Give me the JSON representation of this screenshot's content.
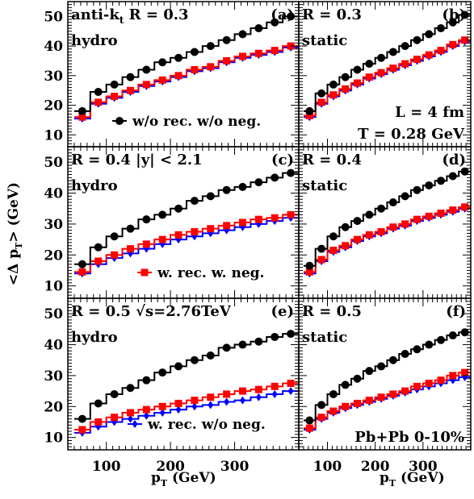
{
  "figure": {
    "ylabel_main": "<Δ p",
    "ylabel_sub": "T",
    "ylabel_tail": "> (GeV)",
    "xlabel_main": "p",
    "xlabel_sub": "T",
    "xlabel_tail": " (GeV)",
    "colors": {
      "black": "#000000",
      "red": "#ff0000",
      "blue": "#0000ff"
    },
    "x_ticks": [
      "100",
      "200",
      "300"
    ],
    "y_ticks": [
      "10",
      "20",
      "30",
      "40",
      "50"
    ]
  },
  "chart_data": [
    {
      "type": "line",
      "panel": "(a)",
      "label_left": "anti-k",
      "label_left_sub": "t",
      "label_left_tail": " R = 0.3",
      "label_sub": "hydro",
      "annotations": [],
      "legend": {
        "marker": "circle",
        "color": "#000000",
        "text": "w/o rec. w/o neg."
      },
      "xlim": [
        40,
        400
      ],
      "ylim": [
        6,
        55
      ],
      "x_edges": [
        50,
        75,
        100,
        125,
        150,
        175,
        200,
        225,
        250,
        275,
        300,
        325,
        350,
        375,
        400
      ],
      "x": [
        62.5,
        87.5,
        112.5,
        137.5,
        162.5,
        187.5,
        212.5,
        237.5,
        262.5,
        287.5,
        312.5,
        337.5,
        362.5,
        387.5
      ],
      "series": [
        {
          "name": "w/o rec. w/o neg.",
          "color": "#000000",
          "marker": "circle",
          "values": [
            18,
            24.5,
            27,
            29.5,
            32,
            34.5,
            36,
            38,
            40,
            42,
            44,
            46,
            48,
            50
          ]
        },
        {
          "color": "#ff0000",
          "marker": "square",
          "values": [
            16,
            21,
            23,
            25,
            27,
            28.5,
            30,
            32,
            33,
            35,
            36.5,
            37.5,
            38.5,
            40
          ]
        },
        {
          "color": "#0000ff",
          "marker": "diamond",
          "values": [
            15.5,
            20.5,
            22.5,
            24.5,
            26.5,
            28,
            29.5,
            31.5,
            32.5,
            34.5,
            36,
            37,
            38,
            39.5
          ]
        }
      ]
    },
    {
      "type": "line",
      "panel": "(b)",
      "label_left": "R = 0.3",
      "label_left_sub": "",
      "label_left_tail": "",
      "label_sub": "static",
      "annotations": [
        "L = 4 fm",
        "T = 0.28 GeV"
      ],
      "legend": null,
      "xlim": [
        40,
        400
      ],
      "ylim": [
        6,
        55
      ],
      "x_edges": [
        50,
        75,
        100,
        125,
        150,
        175,
        200,
        225,
        250,
        275,
        300,
        325,
        350,
        375,
        400
      ],
      "x": [
        62.5,
        87.5,
        112.5,
        137.5,
        162.5,
        187.5,
        212.5,
        237.5,
        262.5,
        287.5,
        312.5,
        337.5,
        362.5,
        387.5
      ],
      "series": [
        {
          "color": "#000000",
          "marker": "circle",
          "values": [
            18,
            24,
            27,
            29.5,
            32,
            34,
            36,
            38,
            40,
            42,
            44,
            46,
            48,
            50.5
          ]
        },
        {
          "color": "#ff0000",
          "marker": "square",
          "values": [
            16.5,
            21,
            23.5,
            25.5,
            27.5,
            29.5,
            31,
            32.5,
            34,
            35.5,
            37,
            38.5,
            40.5,
            42
          ]
        },
        {
          "color": "#0000ff",
          "marker": "diamond",
          "values": [
            16,
            20.5,
            23,
            25,
            27,
            29,
            30.5,
            32,
            33.5,
            35,
            36.5,
            38,
            40,
            41.5
          ]
        }
      ]
    },
    {
      "type": "line",
      "panel": "(c)",
      "label_left": "R = 0.4  |y| < 2.1",
      "label_left_sub": "",
      "label_left_tail": "",
      "label_sub": "hydro",
      "annotations": [],
      "legend": {
        "marker": "square",
        "color": "#ff0000",
        "text": "w. rec. w. neg."
      },
      "xlim": [
        40,
        400
      ],
      "ylim": [
        6,
        55
      ],
      "x_edges": [
        50,
        75,
        100,
        125,
        150,
        175,
        200,
        225,
        250,
        275,
        300,
        325,
        350,
        375,
        400
      ],
      "x": [
        62.5,
        87.5,
        112.5,
        137.5,
        162.5,
        187.5,
        212.5,
        237.5,
        262.5,
        287.5,
        312.5,
        337.5,
        362.5,
        387.5
      ],
      "series": [
        {
          "color": "#000000",
          "marker": "circle",
          "values": [
            17,
            22.5,
            26,
            28.5,
            31.5,
            33,
            35,
            37.5,
            39,
            41,
            42,
            43.5,
            45,
            46.5
          ]
        },
        {
          "name": "w. rec. w. neg.",
          "color": "#ff0000",
          "marker": "square",
          "values": [
            14.5,
            18,
            20,
            22,
            23.5,
            25,
            26.5,
            27.5,
            28.5,
            29.5,
            30.5,
            31.5,
            32,
            33
          ]
        },
        {
          "color": "#0000ff",
          "marker": "diamond",
          "values": [
            14,
            17,
            19,
            20.5,
            22,
            23.5,
            25,
            26,
            27,
            28,
            29,
            30,
            31,
            32
          ]
        }
      ]
    },
    {
      "type": "line",
      "panel": "(d)",
      "label_left": "R = 0.4",
      "label_left_sub": "",
      "label_left_tail": "",
      "label_sub": "static",
      "annotations": [],
      "legend": null,
      "xlim": [
        40,
        400
      ],
      "ylim": [
        6,
        55
      ],
      "x_edges": [
        50,
        75,
        100,
        125,
        150,
        175,
        200,
        225,
        250,
        275,
        300,
        325,
        350,
        375,
        400
      ],
      "x": [
        62.5,
        87.5,
        112.5,
        137.5,
        162.5,
        187.5,
        212.5,
        237.5,
        262.5,
        287.5,
        312.5,
        337.5,
        362.5,
        387.5
      ],
      "series": [
        {
          "color": "#000000",
          "marker": "circle",
          "values": [
            16.5,
            22,
            26,
            29,
            31,
            33,
            35,
            37,
            39,
            41,
            42.5,
            44,
            45.5,
            47
          ]
        },
        {
          "color": "#ff0000",
          "marker": "square",
          "values": [
            14.5,
            18.5,
            21.5,
            23,
            25,
            26.5,
            27.5,
            29,
            30,
            31.5,
            32.5,
            33.5,
            34.5,
            35.5
          ]
        },
        {
          "color": "#0000ff",
          "marker": "diamond",
          "values": [
            14,
            18,
            21,
            22.5,
            24.5,
            26,
            27,
            28.5,
            29.5,
            31,
            32,
            33,
            34,
            35
          ]
        }
      ]
    },
    {
      "type": "line",
      "panel": "(e)",
      "label_left": "R = 0.5  √s=2.76TeV",
      "label_left_sub": "",
      "label_left_tail": "",
      "label_sub": "hydro",
      "annotations": [],
      "legend": {
        "marker": "diamond",
        "color": "#0000ff",
        "text": "w. rec. w/o neg."
      },
      "xlim": [
        40,
        400
      ],
      "ylim": [
        6,
        55
      ],
      "x_edges": [
        50,
        75,
        100,
        125,
        150,
        175,
        200,
        225,
        250,
        275,
        300,
        325,
        350,
        375,
        400
      ],
      "x": [
        62.5,
        87.5,
        112.5,
        137.5,
        162.5,
        187.5,
        212.5,
        237.5,
        262.5,
        287.5,
        312.5,
        337.5,
        362.5,
        387.5
      ],
      "series": [
        {
          "color": "#000000",
          "marker": "circle",
          "values": [
            16,
            21,
            24,
            26,
            28.5,
            31,
            33,
            35,
            36.5,
            39,
            40,
            41,
            42.5,
            43.5
          ]
        },
        {
          "color": "#ff0000",
          "marker": "square",
          "values": [
            12.5,
            15,
            16.5,
            18,
            19,
            20,
            21,
            22,
            23,
            24,
            25,
            25.5,
            26.5,
            27.5
          ]
        },
        {
          "name": "w. rec. w/o neg.",
          "color": "#0000ff",
          "marker": "diamond",
          "values": [
            11.5,
            13.5,
            15,
            16,
            17,
            18,
            19,
            20,
            20.5,
            21.5,
            22,
            23,
            24,
            25
          ]
        }
      ]
    },
    {
      "type": "line",
      "panel": "(f)",
      "label_left": "R = 0.5",
      "label_left_sub": "",
      "label_left_tail": "",
      "label_sub": "static",
      "annotations": [
        "Pb+Pb 0-10%"
      ],
      "legend": null,
      "xlim": [
        40,
        400
      ],
      "ylim": [
        6,
        55
      ],
      "x_edges": [
        50,
        75,
        100,
        125,
        150,
        175,
        200,
        225,
        250,
        275,
        300,
        325,
        350,
        375,
        400
      ],
      "x": [
        62.5,
        87.5,
        112.5,
        137.5,
        162.5,
        187.5,
        212.5,
        237.5,
        262.5,
        287.5,
        312.5,
        337.5,
        362.5,
        387.5
      ],
      "series": [
        {
          "color": "#000000",
          "marker": "circle",
          "values": [
            15.5,
            20.5,
            24,
            27,
            29,
            31.5,
            33,
            35,
            37,
            38.5,
            40,
            41.5,
            43,
            44
          ]
        },
        {
          "color": "#ff0000",
          "marker": "square",
          "values": [
            13,
            16.5,
            18.5,
            20,
            21,
            22,
            23,
            24,
            25,
            26.5,
            27.5,
            28.5,
            30,
            31
          ]
        },
        {
          "color": "#0000ff",
          "marker": "diamond",
          "values": [
            12.5,
            16,
            18,
            19.5,
            20.5,
            21.5,
            22.5,
            23.5,
            24.5,
            25.5,
            26.5,
            27.5,
            28.5,
            29.5
          ]
        }
      ]
    }
  ]
}
